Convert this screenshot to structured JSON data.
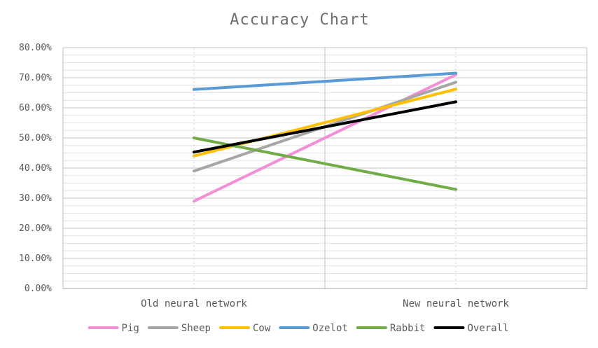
{
  "chart_data": {
    "type": "line",
    "title": "Accuracy Chart",
    "xlabel": "",
    "ylabel": "",
    "categories": [
      "Old neural network",
      "New neural network"
    ],
    "ylim": [
      0,
      0.8
    ],
    "y_tick_step": 0.1,
    "y_tick_format": "percent_2dp",
    "grid": true,
    "legend_position": "bottom",
    "series": [
      {
        "name": "Pig",
        "color": "#f28fd6",
        "values": [
          0.29,
          0.71
        ]
      },
      {
        "name": "Sheep",
        "color": "#a6a6a6",
        "values": [
          0.39,
          0.685
        ]
      },
      {
        "name": "Cow",
        "color": "#ffc000",
        "values": [
          0.44,
          0.662
        ]
      },
      {
        "name": "Ozelot",
        "color": "#5b9bd5",
        "values": [
          0.661,
          0.715
        ]
      },
      {
        "name": "Rabbit",
        "color": "#70ad47",
        "values": [
          0.5,
          0.329
        ]
      },
      {
        "name": "Overall",
        "color": "#000000",
        "values": [
          0.453,
          0.62
        ]
      }
    ]
  }
}
